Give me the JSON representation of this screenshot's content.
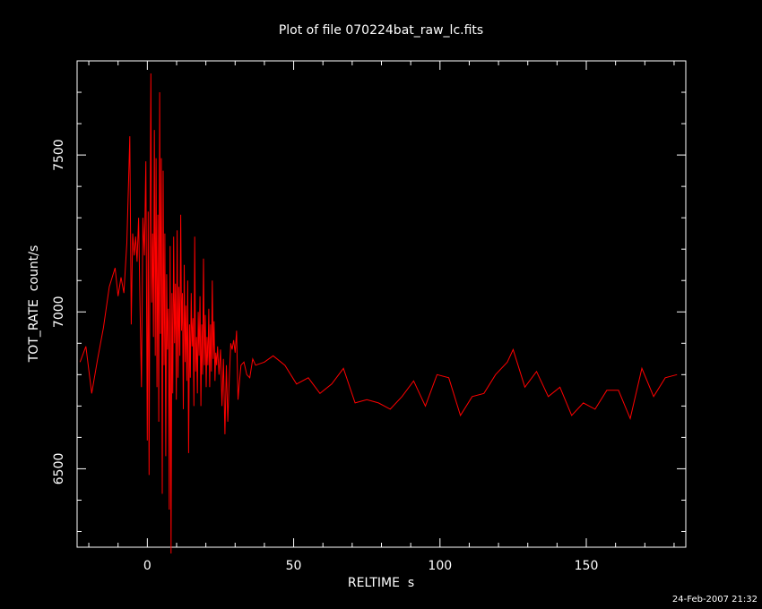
{
  "chart_data": {
    "type": "line",
    "title": "Plot of file 070224bat_raw_lc.fits",
    "xlabel": "RELTIME  s",
    "ylabel": "TOT_RATE  count/s",
    "xlim": [
      -24,
      184
    ],
    "ylim": [
      6250,
      7800
    ],
    "x_ticks": [
      "0",
      "50",
      "100",
      "150"
    ],
    "y_ticks": [
      "6500",
      "7000",
      "7500"
    ],
    "grid": false,
    "legend": "none",
    "background_color": "#000000",
    "axis_color": "#ffffff",
    "series": [
      {
        "color": "#ff0000",
        "points": [
          [
            -23,
            6840
          ],
          [
            -21,
            6890
          ],
          [
            -19,
            6740
          ],
          [
            -17,
            6850
          ],
          [
            -15,
            6950
          ],
          [
            -13,
            7080
          ],
          [
            -11,
            7140
          ],
          [
            -10,
            7050
          ],
          [
            -9,
            7110
          ],
          [
            -8,
            7060
          ],
          [
            -7,
            7220
          ],
          [
            -6,
            7560
          ],
          [
            -5.5,
            6960
          ],
          [
            -5,
            7250
          ],
          [
            -4.5,
            7180
          ],
          [
            -4,
            7240
          ],
          [
            -3.5,
            7160
          ],
          [
            -3,
            7300
          ],
          [
            -2.5,
            7020
          ],
          [
            -2,
            6760
          ],
          [
            -1.5,
            7300
          ],
          [
            -1,
            7180
          ],
          [
            -0.5,
            7480
          ],
          [
            0,
            6590
          ],
          [
            0.3,
            7320
          ],
          [
            0.6,
            6480
          ],
          [
            0.9,
            7220
          ],
          [
            1.2,
            7760
          ],
          [
            1.5,
            7030
          ],
          [
            1.8,
            7250
          ],
          [
            2.1,
            6920
          ],
          [
            2.4,
            7580
          ],
          [
            2.7,
            6860
          ],
          [
            3,
            7490
          ],
          [
            3.3,
            6760
          ],
          [
            3.6,
            7310
          ],
          [
            3.9,
            6650
          ],
          [
            4.2,
            7700
          ],
          [
            4.5,
            6930
          ],
          [
            4.8,
            7490
          ],
          [
            5.1,
            6420
          ],
          [
            5.4,
            7450
          ],
          [
            5.7,
            6830
          ],
          [
            6,
            7250
          ],
          [
            6.3,
            6540
          ],
          [
            6.6,
            7120
          ],
          [
            6.9,
            6880
          ],
          [
            7.2,
            7010
          ],
          [
            7.5,
            6370
          ],
          [
            7.8,
            7210
          ],
          [
            8.1,
            6230
          ],
          [
            8.4,
            7060
          ],
          [
            8.7,
            6740
          ],
          [
            9,
            7240
          ],
          [
            9.3,
            6900
          ],
          [
            9.6,
            7090
          ],
          [
            9.9,
            6720
          ],
          [
            10.2,
            7260
          ],
          [
            10.5,
            6790
          ],
          [
            10.8,
            7080
          ],
          [
            11.1,
            6860
          ],
          [
            11.4,
            7310
          ],
          [
            11.7,
            6940
          ],
          [
            12,
            7060
          ],
          [
            12.3,
            6690
          ],
          [
            12.6,
            7150
          ],
          [
            12.9,
            6840
          ],
          [
            13.2,
            7020
          ],
          [
            13.5,
            6780
          ],
          [
            13.8,
            7100
          ],
          [
            14.1,
            6550
          ],
          [
            14.4,
            6960
          ],
          [
            14.7,
            6790
          ],
          [
            15,
            7060
          ],
          [
            15.3,
            6890
          ],
          [
            15.6,
            6980
          ],
          [
            15.9,
            6700
          ],
          [
            16.2,
            7240
          ],
          [
            16.5,
            6810
          ],
          [
            16.8,
            6920
          ],
          [
            17.1,
            6740
          ],
          [
            17.4,
            7000
          ],
          [
            17.7,
            6860
          ],
          [
            18,
            7050
          ],
          [
            18.3,
            6700
          ],
          [
            18.6,
            6960
          ],
          [
            18.9,
            6800
          ],
          [
            19.2,
            7170
          ],
          [
            19.5,
            6830
          ],
          [
            19.8,
            6990
          ],
          [
            20.1,
            6760
          ],
          [
            20.4,
            6920
          ],
          [
            20.7,
            6830
          ],
          [
            21,
            7010
          ],
          [
            21.3,
            6760
          ],
          [
            21.6,
            6960
          ],
          [
            21.9,
            6810
          ],
          [
            22.2,
            7100
          ],
          [
            22.5,
            6850
          ],
          [
            22.8,
            6970
          ],
          [
            23.1,
            6780
          ],
          [
            23.4,
            6870
          ],
          [
            23.7,
            6830
          ],
          [
            24,
            6890
          ],
          [
            24.5,
            6800
          ],
          [
            25,
            6880
          ],
          [
            25.5,
            6700
          ],
          [
            26,
            6850
          ],
          [
            26.5,
            6610
          ],
          [
            27,
            6830
          ],
          [
            27.5,
            6650
          ],
          [
            28,
            6790
          ],
          [
            28.5,
            6900
          ],
          [
            29,
            6880
          ],
          [
            29.5,
            6910
          ],
          [
            30,
            6870
          ],
          [
            30.5,
            6940
          ],
          [
            31,
            6720
          ],
          [
            31.5,
            6780
          ],
          [
            32,
            6830
          ],
          [
            33,
            6840
          ],
          [
            34,
            6800
          ],
          [
            35,
            6790
          ],
          [
            36,
            6850
          ],
          [
            37,
            6830
          ],
          [
            40,
            6840
          ],
          [
            43,
            6860
          ],
          [
            47,
            6830
          ],
          [
            51,
            6770
          ],
          [
            55,
            6790
          ],
          [
            59,
            6740
          ],
          [
            63,
            6770
          ],
          [
            67,
            6820
          ],
          [
            71,
            6710
          ],
          [
            75,
            6720
          ],
          [
            79,
            6710
          ],
          [
            83,
            6690
          ],
          [
            87,
            6730
          ],
          [
            91,
            6780
          ],
          [
            95,
            6700
          ],
          [
            99,
            6800
          ],
          [
            103,
            6790
          ],
          [
            107,
            6670
          ],
          [
            111,
            6730
          ],
          [
            115,
            6740
          ],
          [
            119,
            6800
          ],
          [
            123,
            6840
          ],
          [
            125,
            6880
          ],
          [
            129,
            6760
          ],
          [
            133,
            6810
          ],
          [
            137,
            6730
          ],
          [
            141,
            6760
          ],
          [
            145,
            6670
          ],
          [
            149,
            6710
          ],
          [
            153,
            6690
          ],
          [
            157,
            6750
          ],
          [
            161,
            6750
          ],
          [
            165,
            6660
          ],
          [
            169,
            6820
          ],
          [
            173,
            6730
          ],
          [
            177,
            6790
          ],
          [
            181,
            6800
          ]
        ]
      }
    ]
  },
  "footer": {
    "timestamp": "24-Feb-2007 21:32"
  }
}
